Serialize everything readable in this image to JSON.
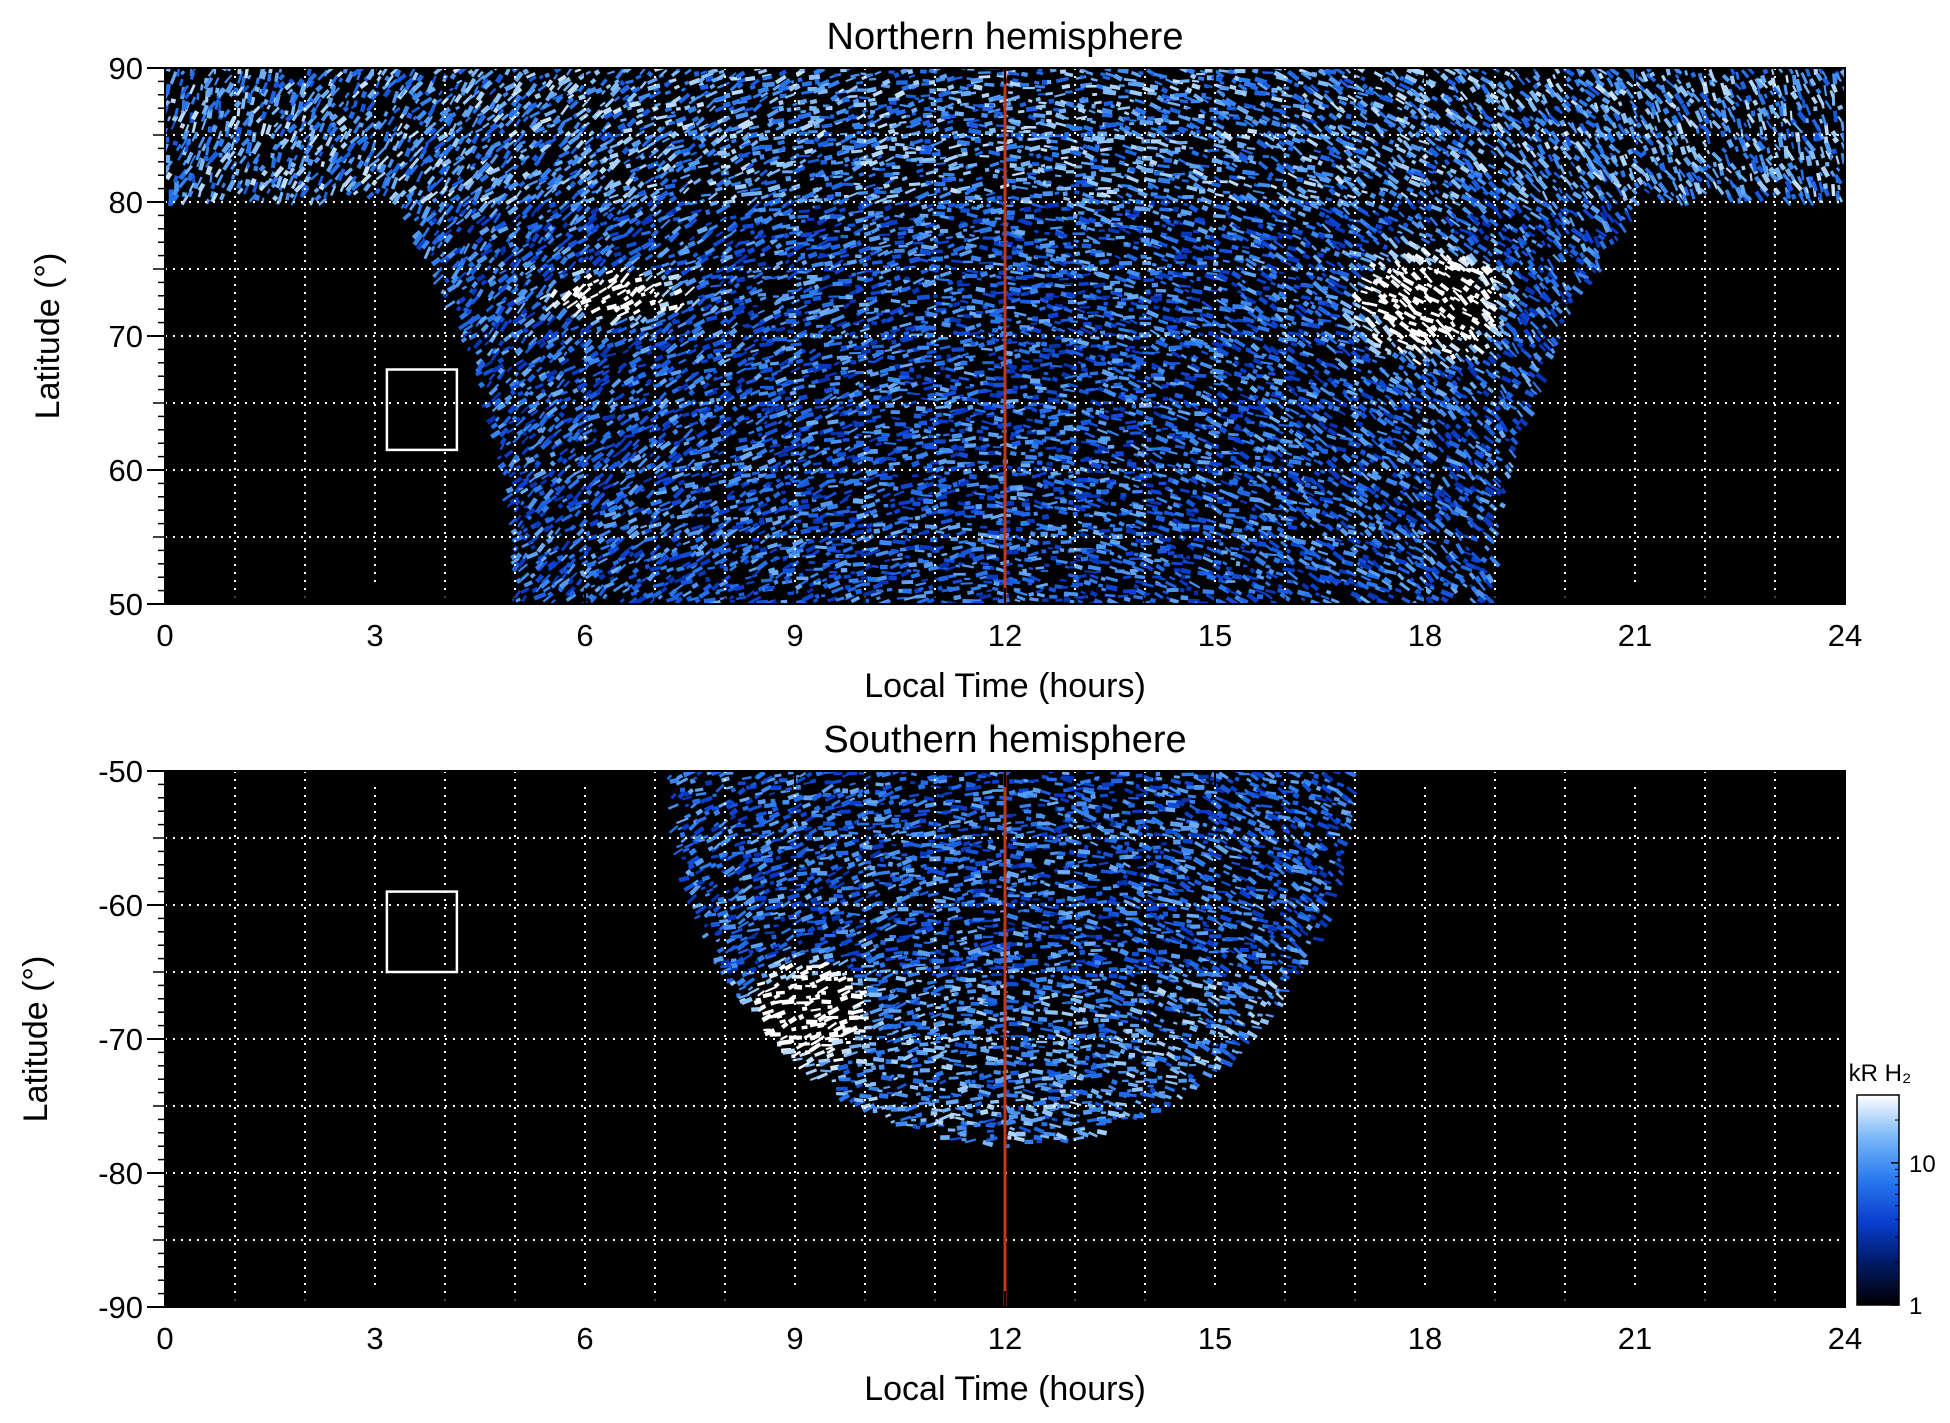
{
  "chart_data": [
    {
      "type": "heatmap",
      "title": "Northern hemisphere",
      "xlabel": "Local Time (hours)",
      "ylabel": "Latitude (°)",
      "xlim": [
        0,
        24
      ],
      "ylim": [
        50,
        90
      ],
      "x_ticks": [
        0,
        3,
        6,
        9,
        12,
        15,
        18,
        21,
        24
      ],
      "x_tick_labels": [
        "0",
        "3",
        "6",
        "9",
        "12",
        "15",
        "18",
        "21",
        "24"
      ],
      "y_ticks": [
        50,
        60,
        70,
        80,
        90
      ],
      "y_tick_labels": [
        "50",
        "60",
        "70",
        "80",
        "90"
      ],
      "grid": true,
      "grid_x": [
        1,
        2,
        3,
        4,
        5,
        6,
        7,
        8,
        9,
        10,
        11,
        12,
        13,
        14,
        15,
        16,
        17,
        18,
        19,
        20,
        21,
        22,
        23
      ],
      "grid_y": [
        55,
        60,
        65,
        70,
        75,
        80,
        85
      ],
      "reference_line": {
        "x": 12,
        "color": "#c0391b"
      },
      "box": {
        "x": [
          3.17,
          4.17
        ],
        "y": [
          61.5,
          67.5
        ],
        "color": "#ffffff"
      },
      "coverage": "polar cap above 80° at all local times; below 80° emission between ~3.3 h and ~21.1 h, narrowing to ~5 h–19 h at 50°",
      "features": [
        {
          "description": "bright band",
          "x": [
            5.5,
            7.5
          ],
          "y": [
            71,
            75
          ]
        },
        {
          "description": "bright band",
          "x": [
            17,
            19.2
          ],
          "y": [
            68,
            77
          ]
        }
      ]
    },
    {
      "type": "heatmap",
      "title": "Southern hemisphere",
      "xlabel": "Local Time (hours)",
      "ylabel": "Latitude (°)",
      "xlim": [
        0,
        24
      ],
      "ylim": [
        -90,
        -50
      ],
      "x_ticks": [
        0,
        3,
        6,
        9,
        12,
        15,
        18,
        21,
        24
      ],
      "x_tick_labels": [
        "0",
        "3",
        "6",
        "9",
        "12",
        "15",
        "18",
        "21",
        "24"
      ],
      "y_ticks": [
        -90,
        -80,
        -70,
        -60,
        -50
      ],
      "y_tick_labels": [
        "-90",
        "-80",
        "-70",
        "-60",
        "-50"
      ],
      "grid": true,
      "grid_x": [
        1,
        2,
        3,
        4,
        5,
        6,
        7,
        8,
        9,
        10,
        11,
        12,
        13,
        14,
        15,
        16,
        17,
        18,
        19,
        20,
        21,
        22,
        23
      ],
      "grid_y": [
        -55,
        -60,
        -65,
        -70,
        -75,
        -80,
        -85
      ],
      "reference_line": {
        "x": 12,
        "color": "#c0391b"
      },
      "box": {
        "x": [
          3.17,
          4.17
        ],
        "y": [
          -65,
          -59
        ],
        "color": "#ffffff"
      },
      "coverage": "bowl-shaped region from ~7.2 h to ~17.0 h at -50°, reaching down to ~-78° near 12 h",
      "features": [
        {
          "description": "bright patch",
          "x": [
            8.3,
            10
          ],
          "y": [
            -72,
            -64
          ]
        }
      ]
    }
  ],
  "colorbar": {
    "label": "kR H₂",
    "ticks": [
      1,
      10
    ],
    "tick_labels": [
      "1",
      "10"
    ],
    "scale": "log",
    "range": [
      1,
      30
    ],
    "colors": [
      "#000000",
      "#001a66",
      "#0a3fd0",
      "#2a7af0",
      "#7ab8f8",
      "#ffffff"
    ]
  }
}
